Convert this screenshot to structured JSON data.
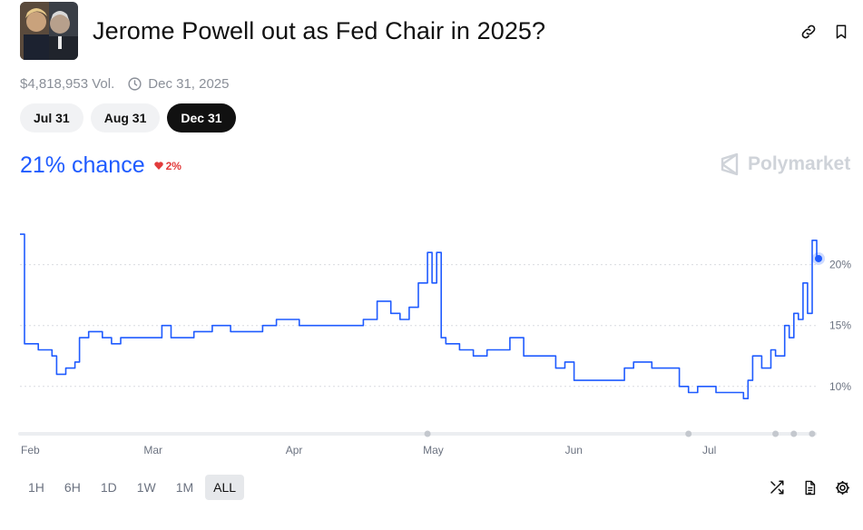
{
  "market": {
    "title": "Jerome Powell out as Fed Chair in 2025?",
    "volume": "$4,818,953 Vol.",
    "end_date": "Dec 31, 2025"
  },
  "date_tabs": [
    {
      "label": "Jul 31",
      "active": false
    },
    {
      "label": "Aug 31",
      "active": false
    },
    {
      "label": "Dec 31",
      "active": true
    }
  ],
  "chance": {
    "text": "21% chance",
    "change": "2%",
    "direction": "down"
  },
  "brand": {
    "name": "Polymarket"
  },
  "ranges": [
    {
      "label": "1H",
      "active": false
    },
    {
      "label": "6H",
      "active": false
    },
    {
      "label": "1D",
      "active": false
    },
    {
      "label": "1W",
      "active": false
    },
    {
      "label": "1M",
      "active": false
    },
    {
      "label": "ALL",
      "active": true
    }
  ],
  "icons": {
    "link": "link-icon",
    "bookmark": "bookmark-icon",
    "clock": "clock-icon",
    "shuffle": "shuffle-icon",
    "document": "document-icon",
    "settings": "gear-icon"
  },
  "colors": {
    "line": "#1f5bff",
    "accent": "#1f5bff",
    "down": "#e23b3b",
    "active_pill": "#111111"
  },
  "chart_data": {
    "type": "line",
    "title": "",
    "xlabel": "",
    "ylabel": "",
    "x_ticks": [
      "Feb",
      "Mar",
      "Apr",
      "May",
      "Jun",
      "Jul"
    ],
    "y_ticks": [
      "20%",
      "15%",
      "10%"
    ],
    "y_tick_values": [
      20,
      15,
      10
    ],
    "ylim": [
      7,
      24
    ],
    "xlim": [
      "2025-01-31",
      "2025-07-24"
    ],
    "grid": true,
    "series": [
      {
        "values_pct": [
          [
            "2025-01-31",
            22.5
          ],
          [
            "2025-02-01",
            13.5
          ],
          [
            "2025-02-03",
            13.5
          ],
          [
            "2025-02-04",
            13.0
          ],
          [
            "2025-02-06",
            13.0
          ],
          [
            "2025-02-07",
            12.5
          ],
          [
            "2025-02-08",
            11.0
          ],
          [
            "2025-02-10",
            11.5
          ],
          [
            "2025-02-12",
            12.0
          ],
          [
            "2025-02-13",
            14.0
          ],
          [
            "2025-02-15",
            14.5
          ],
          [
            "2025-02-18",
            14.0
          ],
          [
            "2025-02-20",
            13.5
          ],
          [
            "2025-02-22",
            14.0
          ],
          [
            "2025-03-01",
            14.0
          ],
          [
            "2025-03-03",
            15.0
          ],
          [
            "2025-03-05",
            14.0
          ],
          [
            "2025-03-10",
            14.5
          ],
          [
            "2025-03-14",
            15.0
          ],
          [
            "2025-03-18",
            14.5
          ],
          [
            "2025-03-25",
            15.0
          ],
          [
            "2025-03-28",
            15.5
          ],
          [
            "2025-04-01",
            15.5
          ],
          [
            "2025-04-02",
            15.0
          ],
          [
            "2025-04-07",
            15.0
          ],
          [
            "2025-04-10",
            15.0
          ],
          [
            "2025-04-14",
            15.0
          ],
          [
            "2025-04-16",
            15.5
          ],
          [
            "2025-04-19",
            17.0
          ],
          [
            "2025-04-22",
            16.0
          ],
          [
            "2025-04-24",
            15.5
          ],
          [
            "2025-04-26",
            16.5
          ],
          [
            "2025-04-28",
            18.5
          ],
          [
            "2025-04-30",
            21.0
          ],
          [
            "2025-05-01",
            18.5
          ],
          [
            "2025-05-02",
            21.0
          ],
          [
            "2025-05-03",
            14.0
          ],
          [
            "2025-05-04",
            13.5
          ],
          [
            "2025-05-07",
            13.0
          ],
          [
            "2025-05-10",
            12.5
          ],
          [
            "2025-05-13",
            13.0
          ],
          [
            "2025-05-18",
            14.0
          ],
          [
            "2025-05-21",
            12.5
          ],
          [
            "2025-05-25",
            12.5
          ],
          [
            "2025-05-28",
            11.5
          ],
          [
            "2025-05-30",
            12.0
          ],
          [
            "2025-06-01",
            10.5
          ],
          [
            "2025-06-08",
            10.5
          ],
          [
            "2025-06-12",
            11.5
          ],
          [
            "2025-06-14",
            12.0
          ],
          [
            "2025-06-18",
            11.5
          ],
          [
            "2025-06-22",
            11.5
          ],
          [
            "2025-06-24",
            10.0
          ],
          [
            "2025-06-26",
            9.5
          ],
          [
            "2025-06-28",
            10.0
          ],
          [
            "2025-07-02",
            9.5
          ],
          [
            "2025-07-06",
            9.5
          ],
          [
            "2025-07-08",
            9.0
          ],
          [
            "2025-07-09",
            10.5
          ],
          [
            "2025-07-10",
            12.5
          ],
          [
            "2025-07-12",
            11.5
          ],
          [
            "2025-07-14",
            13.0
          ],
          [
            "2025-07-15",
            12.5
          ],
          [
            "2025-07-17",
            15.0
          ],
          [
            "2025-07-18",
            14.0
          ],
          [
            "2025-07-19",
            16.0
          ],
          [
            "2025-07-20",
            15.5
          ],
          [
            "2025-07-21",
            18.5
          ],
          [
            "2025-07-22",
            16.0
          ],
          [
            "2025-07-23",
            22.0
          ],
          [
            "2025-07-24",
            20.5
          ]
        ]
      }
    ],
    "current_value_pct": 20.5
  }
}
